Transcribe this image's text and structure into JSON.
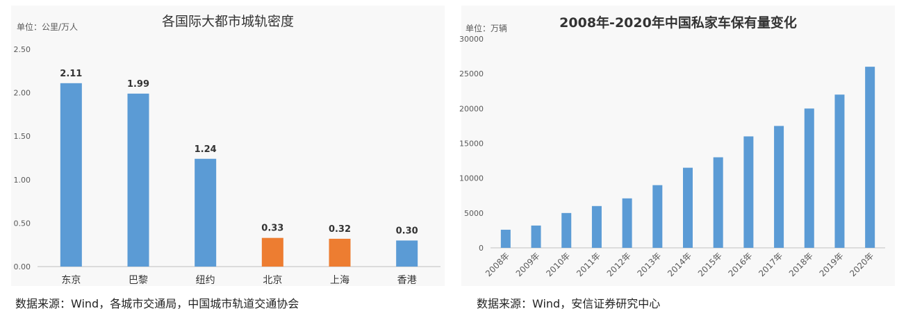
{
  "chart_data": [
    {
      "type": "bar",
      "title": "各国际大都市城轨密度",
      "unit_label": "单位：公里/万人",
      "categories": [
        "东京",
        "巴黎",
        "纽约",
        "北京",
        "上海",
        "香港"
      ],
      "values": [
        2.11,
        1.99,
        1.24,
        0.33,
        0.32,
        0.3
      ],
      "data_labels": [
        "2.11",
        "1.99",
        "1.24",
        "0.33",
        "0.32",
        "0.30"
      ],
      "bar_colors": [
        "#5b9bd5",
        "#5b9bd5",
        "#5b9bd5",
        "#ed7d31",
        "#ed7d31",
        "#5b9bd5"
      ],
      "yticks": [
        "0.00",
        "0.50",
        "1.00",
        "1.50",
        "2.00",
        "2.50"
      ],
      "ylim": [
        0,
        2.5
      ],
      "grid": false
    },
    {
      "type": "bar",
      "title": "2008年-2020年中国私家车保有量变化",
      "unit_label": "单位：万辆",
      "categories": [
        "2008年",
        "2009年",
        "2010年",
        "2011年",
        "2012年",
        "2013年",
        "2014年",
        "2015年",
        "2016年",
        "2017年",
        "2018年",
        "2019年",
        "2020年"
      ],
      "values": [
        2600,
        3200,
        5000,
        6000,
        7100,
        9000,
        11500,
        13000,
        16000,
        17500,
        20000,
        22000,
        26000
      ],
      "bar_color": "#5b9bd5",
      "yticks": [
        "0",
        "5000",
        "10000",
        "15000",
        "20000",
        "25000",
        "30000"
      ],
      "ylim": [
        0,
        30000
      ],
      "grid": false
    }
  ],
  "sources": {
    "left": "数据来源：Wind，各城市交通局，中国城市轨道交通协会",
    "right": "数据来源：Wind，安信证券研究中心"
  }
}
